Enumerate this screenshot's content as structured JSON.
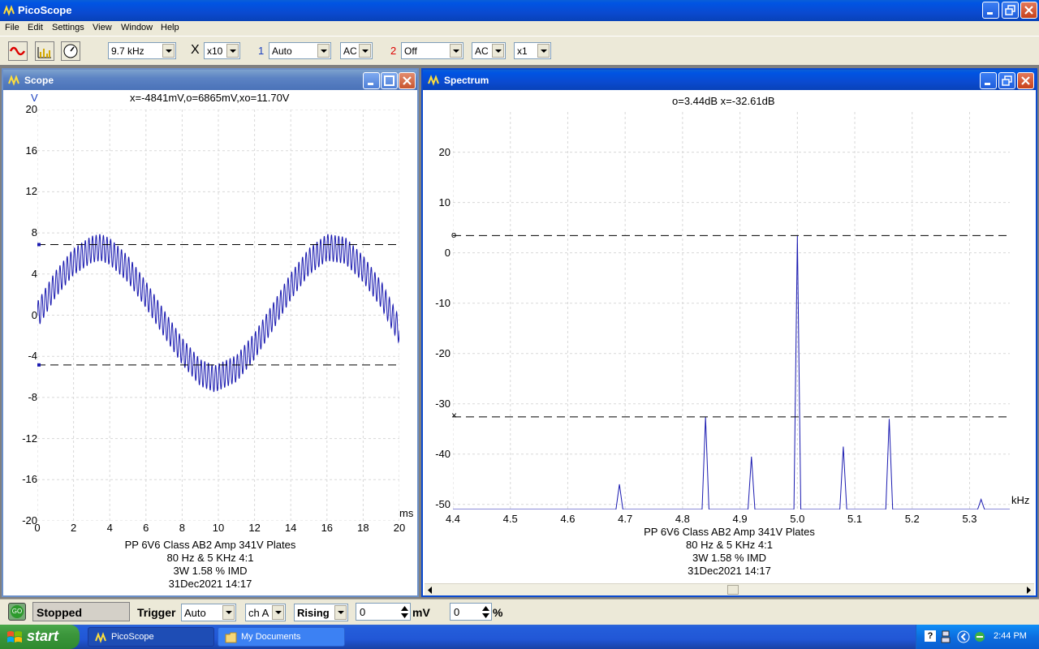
{
  "app": {
    "title": "PicoScope"
  },
  "menu": [
    "File",
    "Edit",
    "Settings",
    "View",
    "Window",
    "Help"
  ],
  "toolbar": {
    "timebase": "9.7 kHz",
    "x_symbol": "X",
    "multiplier": "x10",
    "ch1_label": "1",
    "ch1_range": "Auto",
    "ch1_coupling": "AC",
    "ch2_label": "2",
    "ch2_range": "Off",
    "ch2_coupling": "AC",
    "ch2_mult": "x1"
  },
  "scope": {
    "title": "Scope",
    "y_unit": "V",
    "x_unit": "ms",
    "readout": "x=-4841mV,o=6865mV,xo=11.70V",
    "y_ticks": [
      "20",
      "16",
      "12",
      "8",
      "4",
      "0",
      "-4",
      "-8",
      "-12",
      "-16",
      "-20"
    ],
    "x_ticks": [
      "0",
      "2",
      "4",
      "6",
      "8",
      "10",
      "12",
      "14",
      "16",
      "18",
      "20"
    ],
    "caption": [
      "PP 6V6 Class AB2 Amp 341V Plates",
      "80 Hz & 5 KHz 4:1",
      "3W 1.58 % IMD",
      "31Dec2021  14:17"
    ]
  },
  "spectrum": {
    "title": "Spectrum",
    "readout": "o=3.44dB  x=-32.61dB",
    "x_unit": "kHz",
    "y_ticks": [
      "20",
      "10",
      "0",
      "-10",
      "-20",
      "-30",
      "-40",
      "-50"
    ],
    "x_ticks": [
      "4.4",
      "4.5",
      "4.6",
      "4.7",
      "4.8",
      "4.9",
      "5.0",
      "5.1",
      "5.2",
      "5.3"
    ],
    "cursor_o_label": "o",
    "cursor_x_label": "×",
    "caption": [
      "PP 6V6 Class AB2 Amp 341V Plates",
      "80 Hz & 5 KHz 4:1",
      "3W 1.58 % IMD",
      "31Dec2021  14:17"
    ]
  },
  "chart_data": [
    {
      "type": "line",
      "title": "Scope",
      "xlabel": "ms",
      "ylabel": "V",
      "xlim": [
        0,
        20
      ],
      "ylim": [
        -20,
        20
      ],
      "grid": true,
      "series": [
        {
          "x": [
            0,
            1,
            2,
            3,
            3.5,
            4,
            5,
            6,
            7,
            8,
            9,
            9.8,
            11,
            12,
            13,
            14,
            15,
            16,
            17,
            18,
            19,
            20
          ],
          "y": [
            0,
            3,
            5.2,
            6.4,
            6.6,
            6.2,
            4.5,
            2,
            -0.8,
            -3.5,
            -5.6,
            -6.2,
            -5.2,
            -3,
            -0.2,
            2.8,
            5.2,
            6.6,
            6.3,
            4.5,
            2,
            -1.5
          ]
        }
      ],
      "cursors": {
        "o": 6.865,
        "x": -4.841
      }
    },
    {
      "type": "line",
      "title": "Spectrum",
      "xlabel": "kHz",
      "ylabel": "dB",
      "xlim": [
        4.4,
        5.37
      ],
      "ylim": [
        -51,
        28
      ],
      "grid": true,
      "series": [
        {
          "x": [
            4.4,
            4.69,
            4.84,
            4.92,
            5.0,
            5.08,
            5.16,
            5.32,
            5.37
          ],
          "y": [
            -51,
            -46,
            -32.6,
            -40.5,
            3.44,
            -38.5,
            -33,
            -49,
            -51
          ]
        }
      ],
      "cursors": {
        "o": 3.44,
        "x": -32.61
      }
    }
  ],
  "status": {
    "state": "Stopped",
    "go_label": "GO",
    "trigger_label": "Trigger",
    "trigger_mode": "Auto",
    "trigger_channel": "ch A",
    "trigger_edge": "Rising",
    "trigger_level": "0",
    "trigger_unit": "mV",
    "delay": "0",
    "delay_unit": "%"
  },
  "taskbar": {
    "start": "start",
    "tasks": [
      "PicoScope",
      "My Documents"
    ],
    "clock": "2:44 PM"
  }
}
